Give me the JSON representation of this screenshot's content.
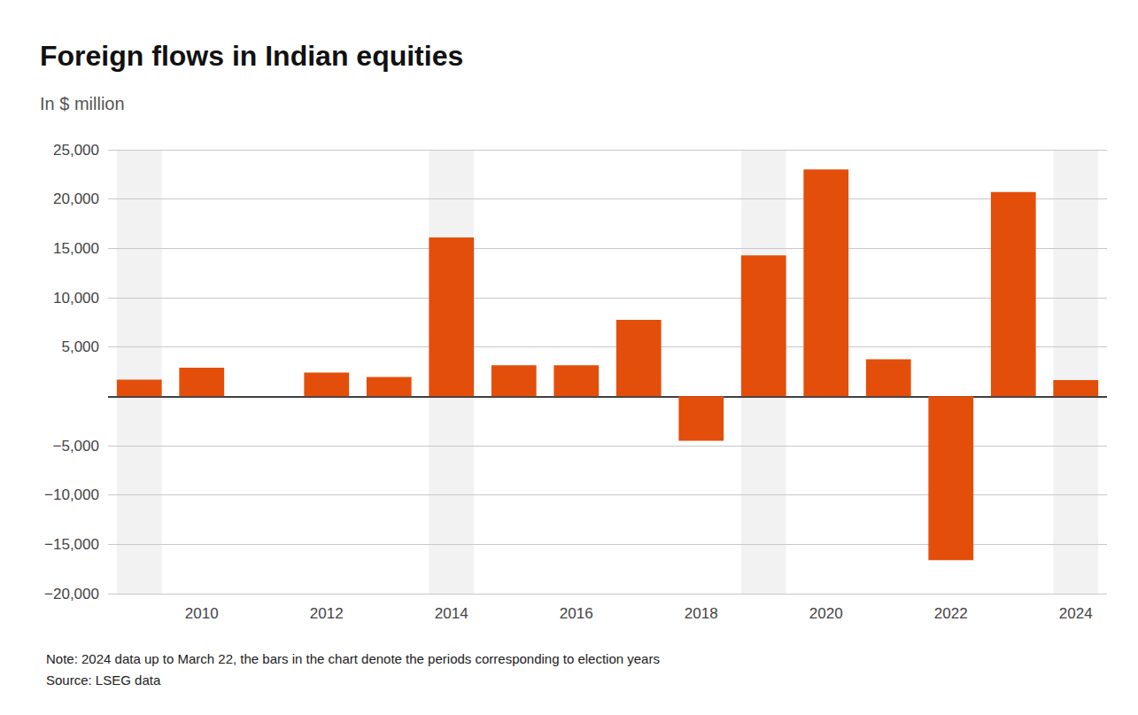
{
  "chart_data": {
    "type": "bar",
    "title": "Foreign flows in Indian equities",
    "subtitle": "In $ million",
    "note": "Note: 2024 data up to March 22, the bars in the chart denote the periods corresponding to election years",
    "source": "Source: LSEG data",
    "categories": [
      null,
      "2010",
      null,
      "2012",
      null,
      "2014",
      null,
      "2016",
      null,
      "2018",
      null,
      "2020",
      null,
      "2022",
      null,
      "2024"
    ],
    "values": [
      1700,
      2900,
      0,
      2400,
      1950,
      16100,
      3150,
      3150,
      7750,
      -4500,
      14300,
      23000,
      3750,
      -16600,
      20700,
      1650
    ],
    "election_years": [
      true,
      false,
      false,
      false,
      false,
      true,
      false,
      false,
      false,
      false,
      true,
      false,
      false,
      false,
      false,
      true
    ],
    "color": "#e34e0b",
    "ylim": [
      -20000,
      25000
    ],
    "yticks": [
      {
        "value": -20000,
        "label": "−20,000"
      },
      {
        "value": -15000,
        "label": "−15,000"
      },
      {
        "value": -10000,
        "label": "−10,000"
      },
      {
        "value": -5000,
        "label": "−5,000"
      },
      {
        "value": 5000,
        "label": "5,000"
      },
      {
        "value": 10000,
        "label": "10,000"
      },
      {
        "value": 15000,
        "label": "15,000"
      },
      {
        "value": 20000,
        "label": "20,000"
      },
      {
        "value": 25000,
        "label": "25,000"
      }
    ],
    "grid": true
  }
}
